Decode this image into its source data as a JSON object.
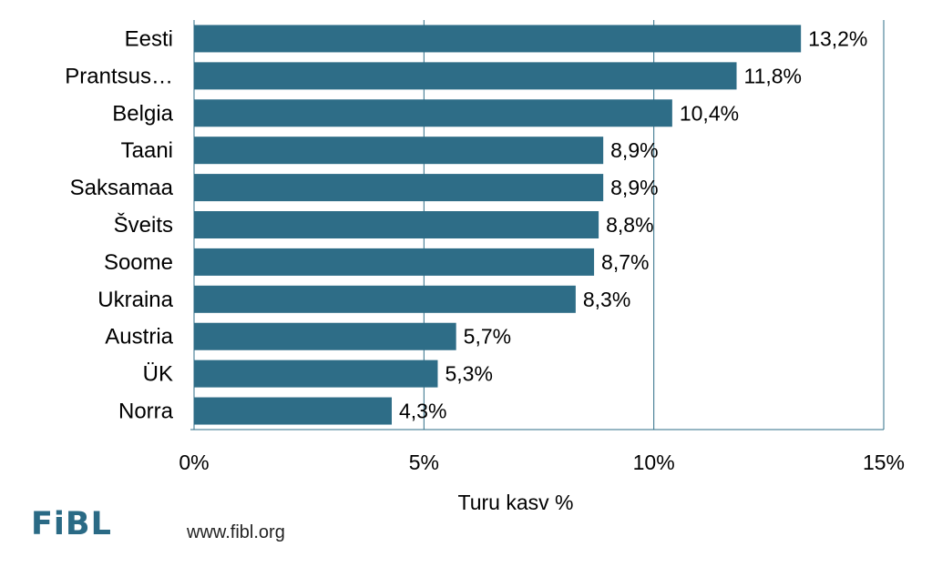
{
  "chart_data": {
    "type": "bar",
    "orientation": "horizontal",
    "categories": [
      "Eesti",
      "Prantsus…",
      "Belgia",
      "Taani",
      "Saksamaa",
      "Šveits",
      "Soome",
      "Ukraina",
      "Austria",
      "ÜK",
      "Norra"
    ],
    "values": [
      13.2,
      11.8,
      10.4,
      8.9,
      8.9,
      8.8,
      8.7,
      8.3,
      5.7,
      5.3,
      4.3
    ],
    "value_labels": [
      "13,2%",
      "11,8%",
      "10,4%",
      "8,9%",
      "8,9%",
      "8,8%",
      "8,7%",
      "8,3%",
      "5,7%",
      "5,3%",
      "4,3%"
    ],
    "xlim": [
      0,
      15
    ],
    "xticks": [
      0,
      5,
      10,
      15
    ],
    "xtick_labels": [
      "0%",
      "5%",
      "10%",
      "15%"
    ],
    "xlabel": "Turu kasv %",
    "grid": "vertical",
    "bar_color": "#2e6d87"
  },
  "footer": {
    "logo_text": "FiBL",
    "url": "www.fibl.org"
  }
}
